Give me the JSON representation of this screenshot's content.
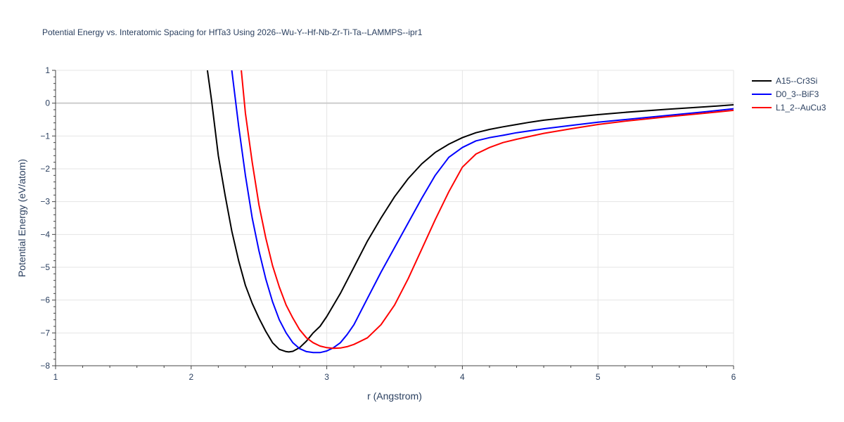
{
  "chart_data": {
    "type": "line",
    "title": "Potential Energy vs. Interatomic Spacing for HfTa3 Using 2026--Wu-Y--Hf-Nb-Zr-Ti-Ta--LAMMPS--ipr1",
    "xlabel": "r (Angstrom)",
    "ylabel": "Potential Energy (eV/atom)",
    "xlim": [
      1,
      6
    ],
    "ylim": [
      -8,
      1
    ],
    "xticks": [
      1,
      2,
      3,
      4,
      5,
      6
    ],
    "yticks": [
      1,
      0,
      -1,
      -2,
      -3,
      -4,
      -5,
      -6,
      -7,
      -8
    ],
    "ytick_labels": [
      "1",
      "0",
      "−1",
      "−2",
      "−3",
      "−4",
      "−5",
      "−6",
      "−7",
      "−8"
    ],
    "grid": true,
    "legend_position": "top-right",
    "series": [
      {
        "name": "A15--Cr3Si",
        "color": "#000000",
        "x": [
          2.12,
          2.15,
          2.2,
          2.25,
          2.3,
          2.35,
          2.4,
          2.45,
          2.5,
          2.55,
          2.6,
          2.65,
          2.7,
          2.72,
          2.75,
          2.8,
          2.85,
          2.9,
          2.95,
          3.0,
          3.1,
          3.2,
          3.3,
          3.4,
          3.5,
          3.6,
          3.7,
          3.8,
          3.9,
          4.0,
          4.1,
          4.2,
          4.3,
          4.4,
          4.5,
          4.6,
          4.8,
          5.0,
          5.2,
          5.5,
          5.8,
          6.0
        ],
        "y": [
          1.0,
          0.1,
          -1.6,
          -2.8,
          -3.9,
          -4.8,
          -5.55,
          -6.1,
          -6.55,
          -6.95,
          -7.3,
          -7.5,
          -7.57,
          -7.58,
          -7.56,
          -7.45,
          -7.25,
          -7.0,
          -6.8,
          -6.5,
          -5.8,
          -5.0,
          -4.2,
          -3.5,
          -2.85,
          -2.3,
          -1.85,
          -1.5,
          -1.25,
          -1.05,
          -0.9,
          -0.8,
          -0.72,
          -0.65,
          -0.58,
          -0.52,
          -0.43,
          -0.35,
          -0.28,
          -0.19,
          -0.11,
          -0.05
        ]
      },
      {
        "name": "D0_3--BiF3",
        "color": "#0000ff",
        "x": [
          2.3,
          2.35,
          2.4,
          2.45,
          2.5,
          2.55,
          2.6,
          2.65,
          2.7,
          2.75,
          2.8,
          2.85,
          2.9,
          2.95,
          3.0,
          3.05,
          3.1,
          3.15,
          3.2,
          3.3,
          3.4,
          3.5,
          3.6,
          3.7,
          3.8,
          3.9,
          4.0,
          4.1,
          4.2,
          4.3,
          4.4,
          4.6,
          4.8,
          5.0,
          5.2,
          5.5,
          5.8,
          6.0
        ],
        "y": [
          1.0,
          -0.7,
          -2.2,
          -3.5,
          -4.5,
          -5.35,
          -6.05,
          -6.6,
          -7.0,
          -7.3,
          -7.48,
          -7.57,
          -7.6,
          -7.6,
          -7.55,
          -7.45,
          -7.3,
          -7.05,
          -6.75,
          -5.95,
          -5.15,
          -4.4,
          -3.65,
          -2.9,
          -2.2,
          -1.65,
          -1.35,
          -1.15,
          -1.05,
          -0.98,
          -0.9,
          -0.78,
          -0.68,
          -0.58,
          -0.5,
          -0.38,
          -0.26,
          -0.17
        ]
      },
      {
        "name": "L1_2--AuCu3",
        "color": "#ff0000",
        "x": [
          2.37,
          2.4,
          2.45,
          2.5,
          2.55,
          2.6,
          2.65,
          2.7,
          2.75,
          2.8,
          2.85,
          2.9,
          2.95,
          3.0,
          3.05,
          3.1,
          3.15,
          3.2,
          3.3,
          3.4,
          3.5,
          3.6,
          3.7,
          3.8,
          3.9,
          4.0,
          4.1,
          4.2,
          4.3,
          4.4,
          4.6,
          4.8,
          5.0,
          5.2,
          5.5,
          5.8,
          6.0
        ],
        "y": [
          1.0,
          -0.3,
          -1.8,
          -3.1,
          -4.1,
          -4.95,
          -5.6,
          -6.15,
          -6.55,
          -6.9,
          -7.15,
          -7.3,
          -7.4,
          -7.45,
          -7.47,
          -7.46,
          -7.42,
          -7.35,
          -7.15,
          -6.75,
          -6.15,
          -5.35,
          -4.45,
          -3.55,
          -2.7,
          -1.95,
          -1.55,
          -1.35,
          -1.2,
          -1.1,
          -0.92,
          -0.78,
          -0.65,
          -0.55,
          -0.42,
          -0.3,
          -0.22
        ]
      }
    ]
  }
}
